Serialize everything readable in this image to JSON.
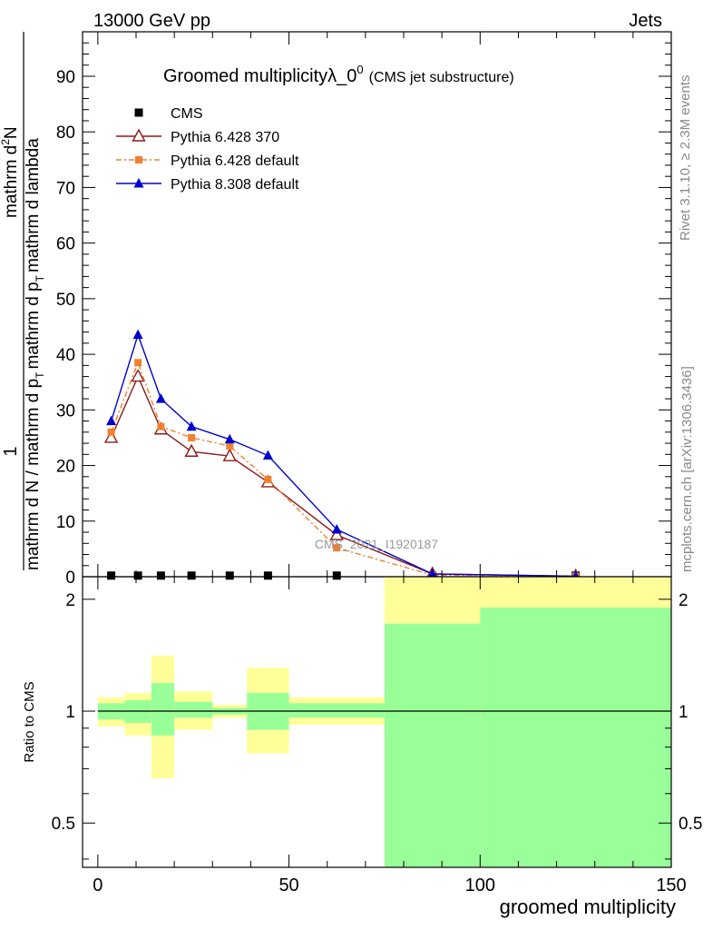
{
  "header": {
    "energy_label": "13000 GeV pp",
    "category_label": "Jets"
  },
  "side_labels": {
    "rivet": "Rivet 3.1.10, ≥ 2.3M events",
    "mcplots": "mcplots.cern.ch [arXiv:1306.3436]"
  },
  "watermark": "CMS_2021_I1920187",
  "chart_data": [
    {
      "type": "line",
      "title_main": "Groomed multiplicityλ_0",
      "title_sup": "0",
      "title_sub": "(CMS jet substructure)",
      "xlabel": "groomed multiplicity",
      "ylabel_numerator": "1",
      "ylabel_denominator": "mathrm d N / mathrm d p",
      "ylabel_denominator_sub": "T",
      "ylabel_denominator_tail": "mathrm d p",
      "ylabel_denominator_sub2": "T",
      "ylabel_denominator_end": "mathrm d lambda",
      "ylabel_top": "mathrm d",
      "ylabel_top_sup": "2",
      "ylabel_top_end": "N",
      "xlim": [
        -4,
        150
      ],
      "ylim": [
        0,
        98
      ],
      "x_ticks": [
        0,
        50,
        100,
        150
      ],
      "y_ticks": [
        0,
        10,
        20,
        30,
        40,
        50,
        60,
        70,
        80,
        90
      ],
      "legend_position": "top-left",
      "series": [
        {
          "name": "CMS",
          "color": "#000000",
          "marker": "square",
          "x": [
            3.5,
            10.5,
            16.5,
            24.5,
            34.5,
            44.5,
            62.5,
            87.5,
            125
          ],
          "values": [
            0.2,
            0.2,
            0.2,
            0.2,
            0.2,
            0.2,
            0.2,
            0.2,
            0.2
          ]
        },
        {
          "name": "Pythia 6.428 370",
          "color": "#8b1a1a",
          "marker": "open-triangle",
          "x": [
            3.5,
            10.5,
            16.5,
            24.5,
            34.5,
            44.5,
            62.5,
            87.5,
            125
          ],
          "values": [
            25,
            36,
            26.5,
            22.5,
            21.7,
            17,
            7.5,
            0.5,
            0.1
          ]
        },
        {
          "name": "Pythia 6.428 default",
          "color": "#f08030",
          "marker": "filled-square",
          "x": [
            3.5,
            10.5,
            16.5,
            24.5,
            34.5,
            44.5,
            62.5,
            87.5,
            125
          ],
          "values": [
            26,
            38.5,
            27,
            25,
            23.5,
            17.5,
            5.2,
            0.3,
            0.1
          ]
        },
        {
          "name": "Pythia 8.308 default",
          "color": "#0000cc",
          "marker": "filled-triangle",
          "x": [
            3.5,
            10.5,
            16.5,
            24.5,
            34.5,
            44.5,
            62.5,
            87.5,
            125
          ],
          "values": [
            28,
            43.5,
            32,
            27,
            24.7,
            21.8,
            8.5,
            0.5,
            0.1
          ]
        }
      ]
    },
    {
      "type": "area",
      "ylabel": "Ratio to CMS",
      "xlim": [
        -4,
        150
      ],
      "ylim": [
        0.38,
        2.3
      ],
      "y_scale": "log",
      "x_ticks": [
        0,
        50,
        100,
        150
      ],
      "y_ticks": [
        0.5,
        1,
        2
      ],
      "y_tick_labels": [
        "0.5",
        "1",
        "2"
      ],
      "reference_line": 1,
      "bins": [
        {
          "x_low": 0,
          "x_high": 7,
          "inner_low": 0.95,
          "inner_high": 1.05,
          "outer_low": 0.91,
          "outer_high": 1.09
        },
        {
          "x_low": 7,
          "x_high": 14,
          "inner_low": 0.93,
          "inner_high": 1.07,
          "outer_low": 0.86,
          "outer_high": 1.12
        },
        {
          "x_low": 14,
          "x_high": 20,
          "inner_low": 0.86,
          "inner_high": 1.19,
          "outer_low": 0.66,
          "outer_high": 1.41
        },
        {
          "x_low": 20,
          "x_high": 30,
          "inner_low": 0.96,
          "inner_high": 1.06,
          "outer_low": 0.89,
          "outer_high": 1.13
        },
        {
          "x_low": 30,
          "x_high": 39,
          "inner_low": 0.98,
          "inner_high": 1.02,
          "outer_low": 0.96,
          "outer_high": 1.04
        },
        {
          "x_low": 39,
          "x_high": 50,
          "inner_low": 0.89,
          "inner_high": 1.12,
          "outer_low": 0.77,
          "outer_high": 1.31
        },
        {
          "x_low": 50,
          "x_high": 75,
          "inner_low": 0.96,
          "inner_high": 1.05,
          "outer_low": 0.92,
          "outer_high": 1.09
        },
        {
          "x_low": 75,
          "x_high": 100,
          "inner_low": 0.38,
          "inner_high": 1.72,
          "outer_low": 0.38,
          "outer_high": 2.3
        },
        {
          "x_low": 100,
          "x_high": 150,
          "inner_low": 0.38,
          "inner_high": 1.9,
          "outer_low": 0.38,
          "outer_high": 2.3
        }
      ],
      "band_colors": {
        "inner": "#99ff99",
        "outer": "#ffff99"
      }
    }
  ]
}
